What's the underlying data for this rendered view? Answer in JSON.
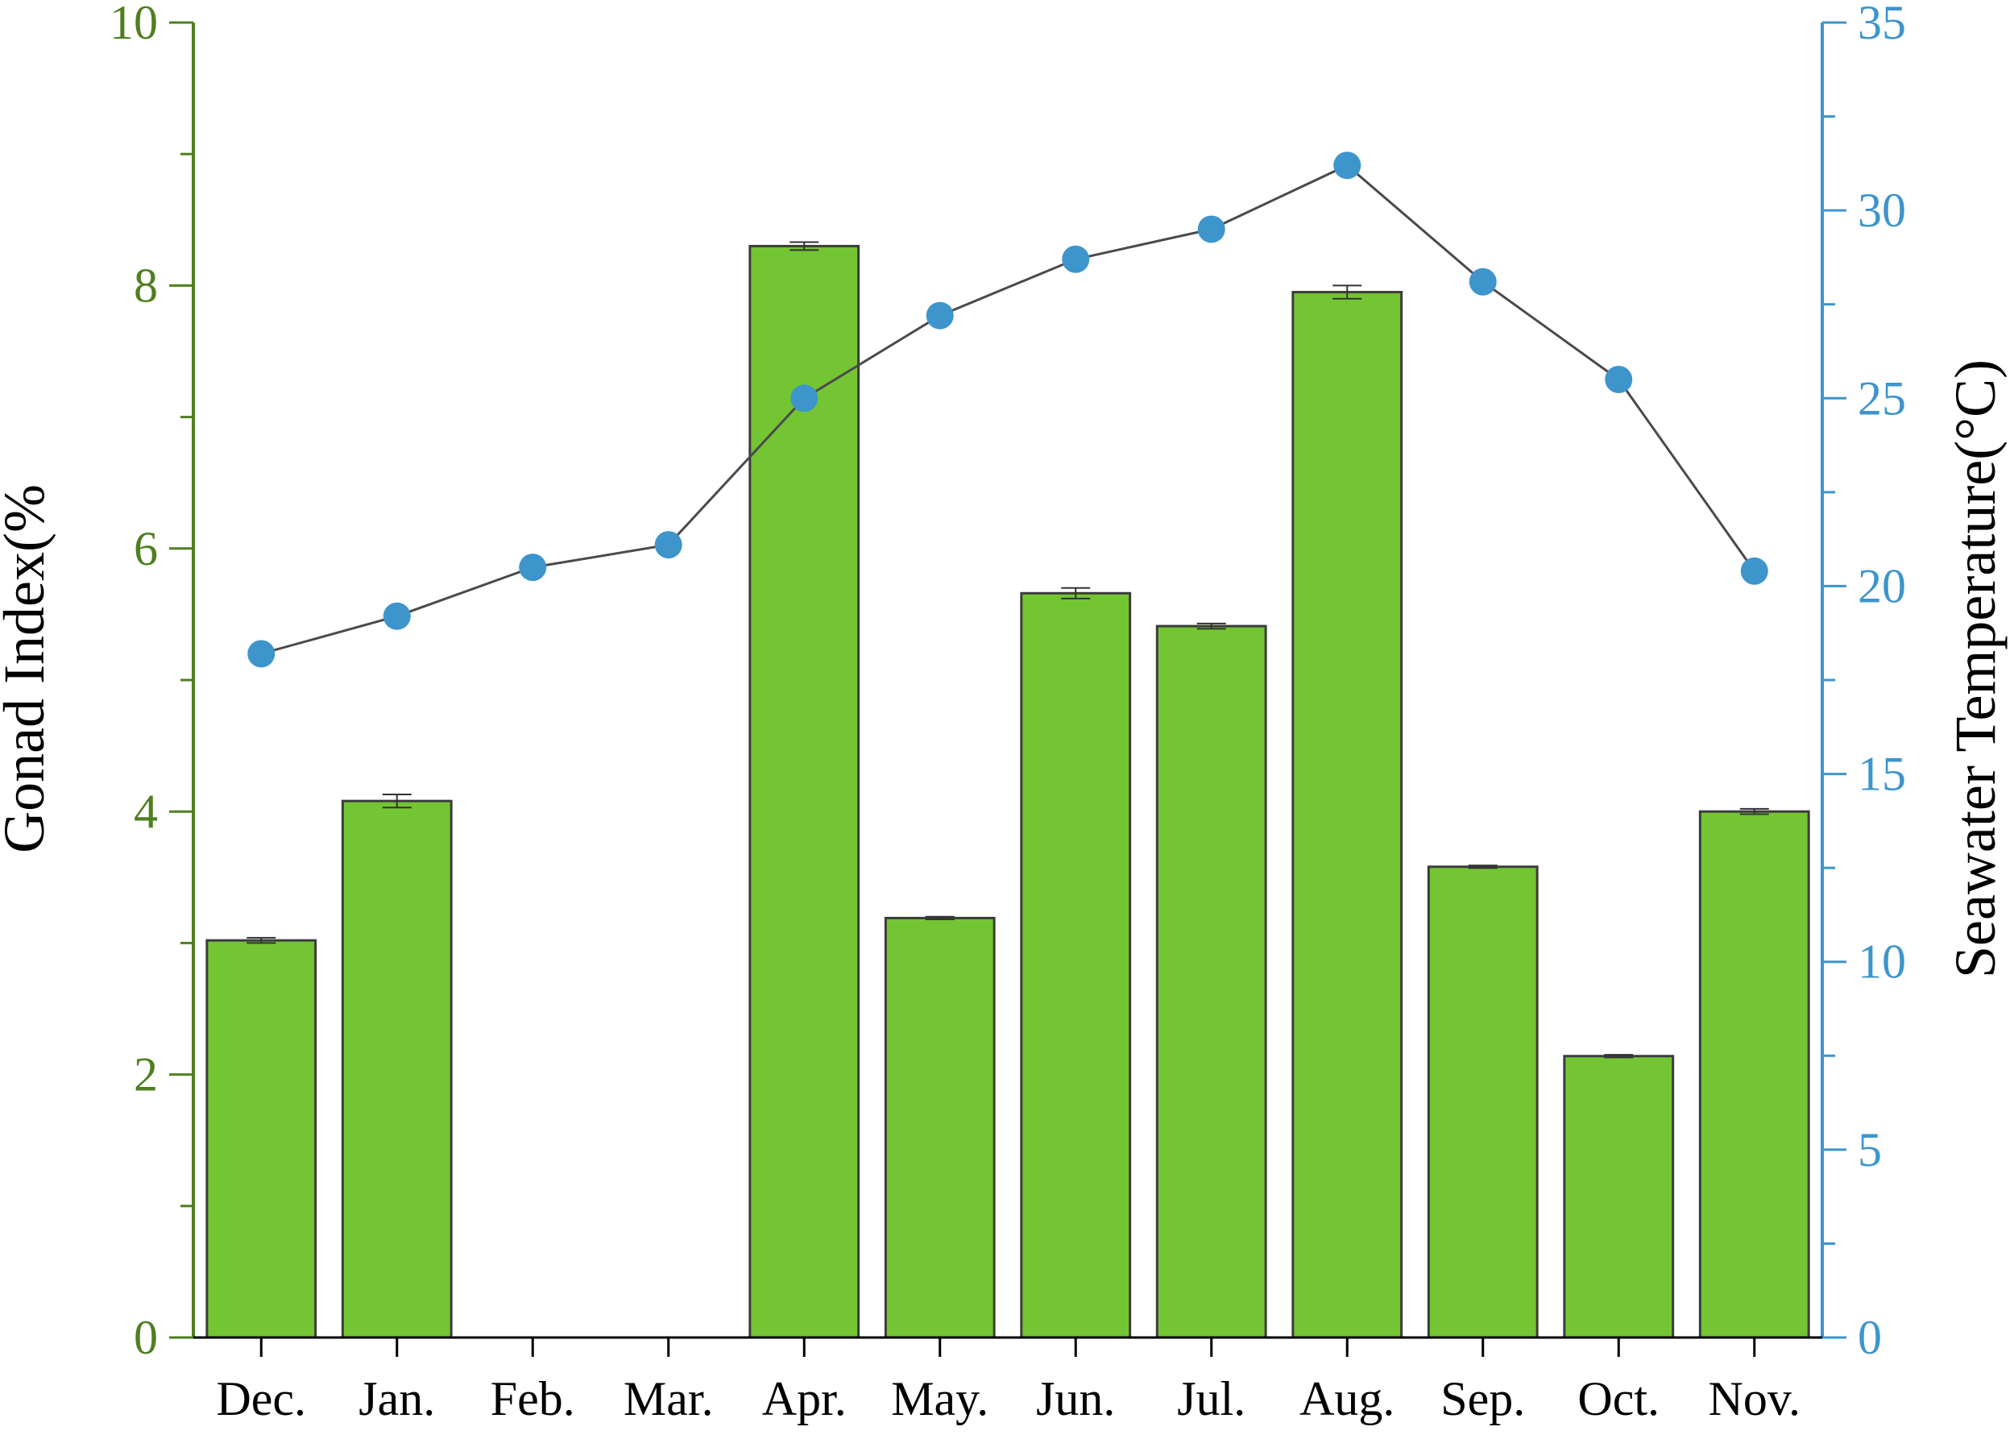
{
  "chart_data": {
    "type": "bar",
    "categories": [
      "Dec.",
      "Jan.",
      "Feb.",
      "Mar.",
      "Apr.",
      "May.",
      "Jun.",
      "Jul.",
      "Aug.",
      "Sep.",
      "Oct.",
      "Nov."
    ],
    "series": [
      {
        "name": "Gonad Index",
        "type": "bar",
        "axis": "left",
        "values": [
          3.02,
          4.08,
          0,
          0,
          8.3,
          3.19,
          5.66,
          5.41,
          7.95,
          3.58,
          2.14,
          4.0
        ],
        "errors": [
          0.02,
          0.05,
          0,
          0,
          0.03,
          0.01,
          0.04,
          0.02,
          0.05,
          0.01,
          0.01,
          0.02
        ]
      },
      {
        "name": "Seawater Temperature",
        "type": "line",
        "axis": "right",
        "values": [
          18.2,
          19.2,
          20.5,
          21.1,
          25.0,
          27.2,
          28.7,
          29.5,
          31.2,
          28.1,
          25.5,
          20.4
        ]
      }
    ],
    "ylabel": "Gonad Index(%",
    "ylabel_right": "Seawater Temperature(°C)",
    "ylim": [
      0,
      10
    ],
    "ylim_right": [
      0,
      35
    ],
    "yticks": [
      "0",
      "2",
      "4",
      "6",
      "8",
      "10"
    ],
    "yticks_right": [
      "0",
      "5",
      "10",
      "15",
      "20",
      "25",
      "30",
      "35"
    ],
    "grid": false,
    "colors": {
      "bar": "#74c533",
      "bar_edge": "#3c3c3c",
      "line": "#4a4a4a",
      "marker": "#3d95cc",
      "left_axis": "#4f7f1f",
      "right_axis": "#3d95cc"
    }
  }
}
